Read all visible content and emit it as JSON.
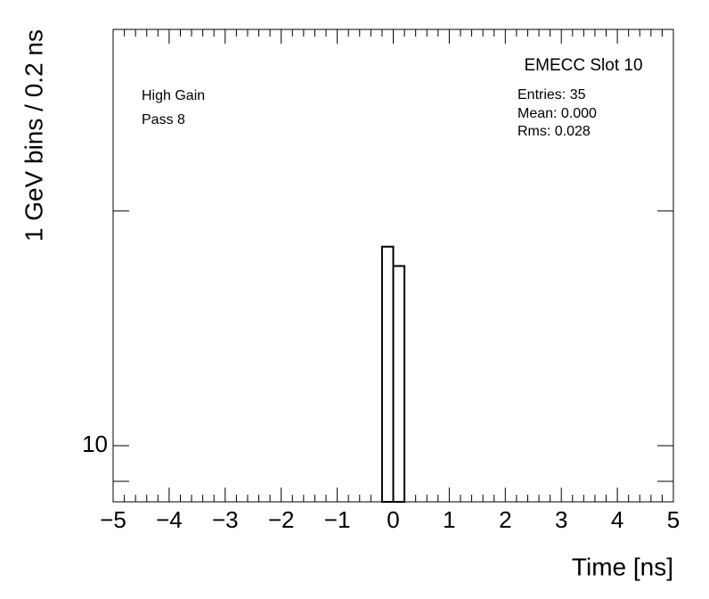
{
  "chart_data": {
    "type": "histogram",
    "title": "EMECC Slot 10",
    "stats": [
      "Entries: 35",
      "Mean: 0.000",
      "Rms: 0.028"
    ],
    "annotations": [
      "High Gain",
      "Pass 8"
    ],
    "xlabel": "Time [ns]",
    "ylabel": "1 GeV bins / 0.2 ns",
    "bins": [
      -5,
      -4.8,
      -4.6,
      -4.4,
      -4.2,
      -4,
      -3.8,
      -3.6,
      -3.4,
      -3.2,
      -3,
      -2.8,
      -2.6,
      -2.4,
      -2.2,
      -2,
      -1.8,
      -1.6,
      -1.4,
      -1.2,
      -1,
      -0.8,
      -0.6,
      -0.4,
      -0.2,
      0,
      0.2,
      0.4,
      0.6,
      0.8,
      1,
      1.2,
      1.4,
      1.6,
      1.8,
      2,
      2.2,
      2.4,
      2.6,
      2.8,
      3,
      3.2,
      3.4,
      3.6,
      3.8,
      4,
      4.2,
      4.4,
      4.6,
      4.8,
      5
    ],
    "counts": [
      0,
      0,
      0,
      0,
      0,
      0,
      0,
      0,
      0,
      0,
      0,
      0,
      0,
      0,
      0,
      0,
      0,
      0,
      0,
      0,
      0,
      0,
      0,
      0,
      18,
      17,
      0,
      0,
      0,
      0,
      0,
      0,
      0,
      0,
      0,
      0,
      0,
      0,
      0,
      0,
      0,
      0,
      0,
      0,
      0,
      0,
      0,
      0,
      0,
      0
    ],
    "color": "#000000",
    "xlim": [
      -5,
      5
    ],
    "xticks": [
      {
        "value": -5,
        "label": "−5"
      },
      {
        "value": -4,
        "label": "−4"
      },
      {
        "value": -3,
        "label": "−3"
      },
      {
        "value": -2,
        "label": "−2"
      },
      {
        "value": -1,
        "label": "−1"
      },
      0,
      1,
      2,
      3,
      4,
      5
    ],
    "xminor_divisions": 5,
    "ylim": [
      8.47,
      34.2
    ],
    "log_y": true,
    "yticks": [
      10
    ],
    "yminor_ticks": [
      9,
      20
    ],
    "grid": false
  }
}
